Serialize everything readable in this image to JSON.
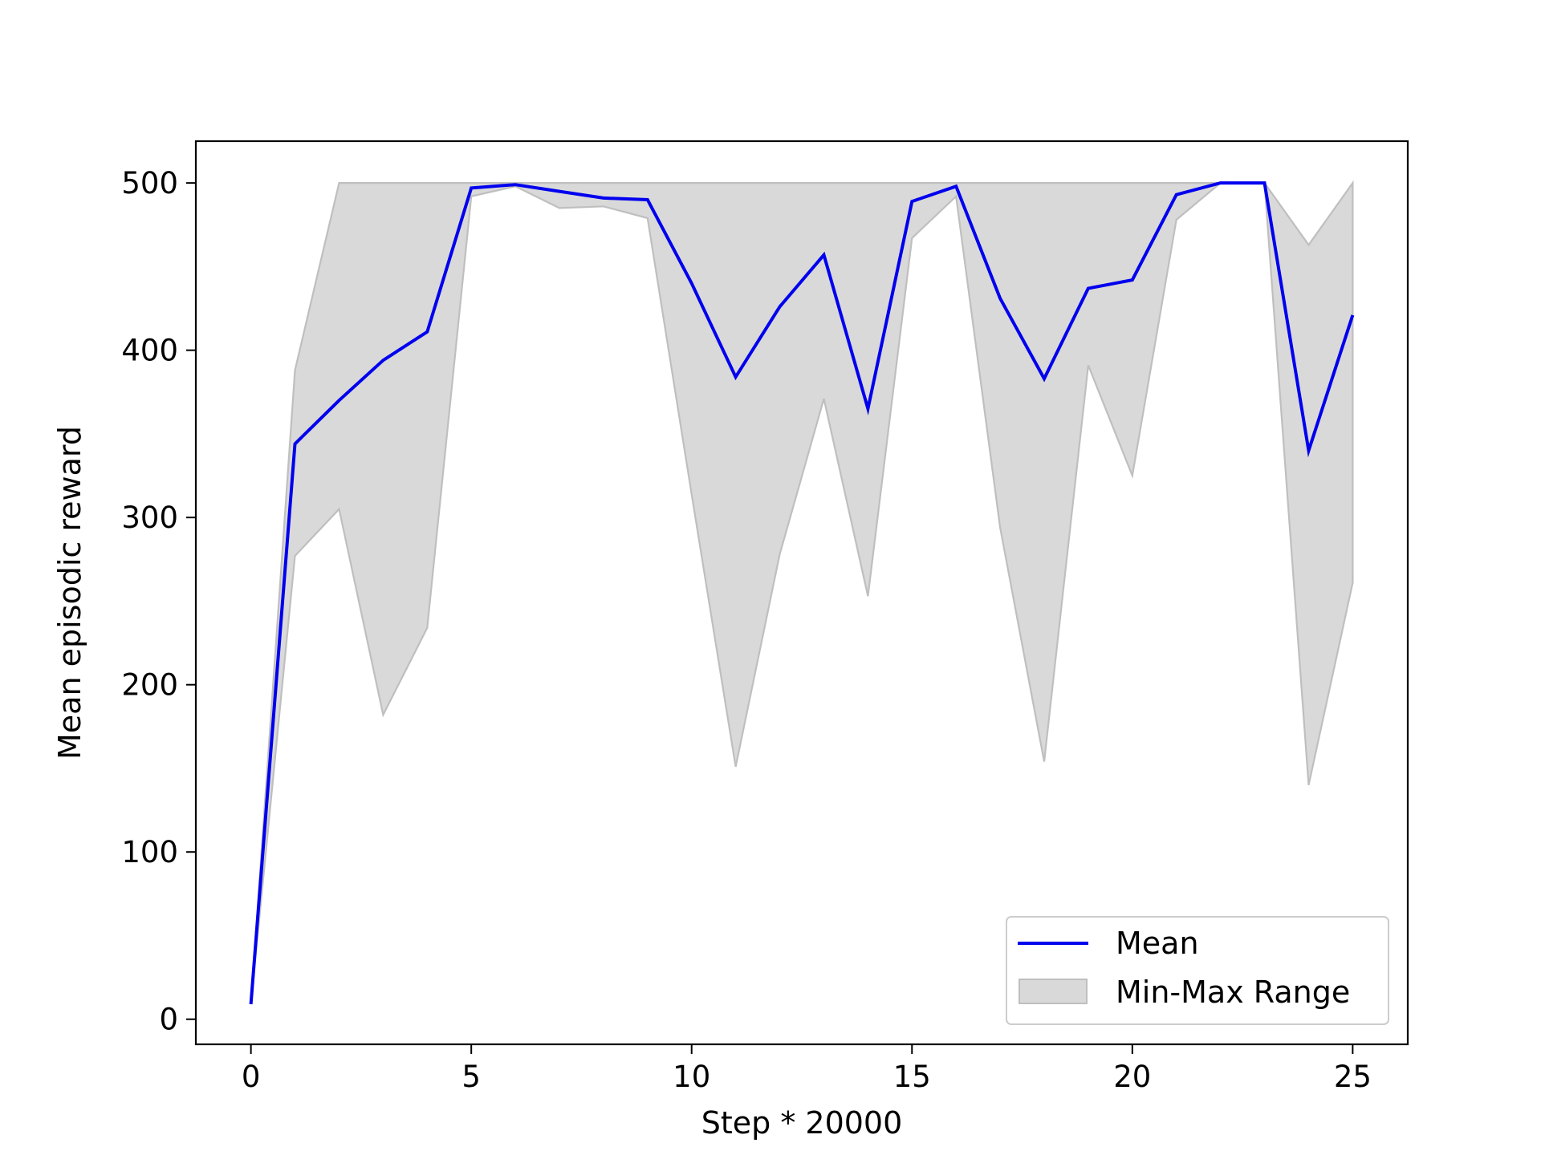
{
  "chart_data": {
    "type": "line",
    "xlabel": "Step * 20000",
    "ylabel": "Mean episodic reward",
    "xlim": [
      -1.25,
      26.25
    ],
    "ylim": [
      -15,
      525
    ],
    "xticks": [
      0,
      5,
      10,
      15,
      20,
      25
    ],
    "yticks": [
      0,
      100,
      200,
      300,
      400,
      500
    ],
    "grid": false,
    "legend_position": "lower-right",
    "x": [
      0,
      1,
      2,
      3,
      4,
      5,
      6,
      7,
      8,
      9,
      10,
      11,
      12,
      13,
      14,
      15,
      16,
      17,
      18,
      19,
      20,
      21,
      22,
      23,
      24,
      25
    ],
    "series": [
      {
        "name": "Mean",
        "color": "#0000ee",
        "values": [
          9,
          344,
          370,
          394,
          411,
          497,
          499,
          495,
          491,
          490,
          440,
          384,
          426,
          457,
          365,
          489,
          498,
          431,
          383,
          437,
          442,
          493,
          500,
          500,
          340,
          421
        ]
      }
    ],
    "band": {
      "name": "Min-Max Range",
      "color": "#d9d9d9",
      "edge_color": "#bfbfbf",
      "min": [
        9,
        277,
        305,
        182,
        234,
        492,
        498,
        485,
        486,
        479,
        314,
        151,
        278,
        371,
        253,
        467,
        492,
        294,
        154,
        391,
        325,
        478,
        500,
        500,
        140,
        261
      ],
      "max": [
        9,
        388,
        500,
        500,
        500,
        500,
        500,
        500,
        500,
        500,
        500,
        500,
        500,
        500,
        500,
        500,
        500,
        500,
        500,
        500,
        500,
        500,
        500,
        500,
        463,
        500
      ]
    }
  }
}
